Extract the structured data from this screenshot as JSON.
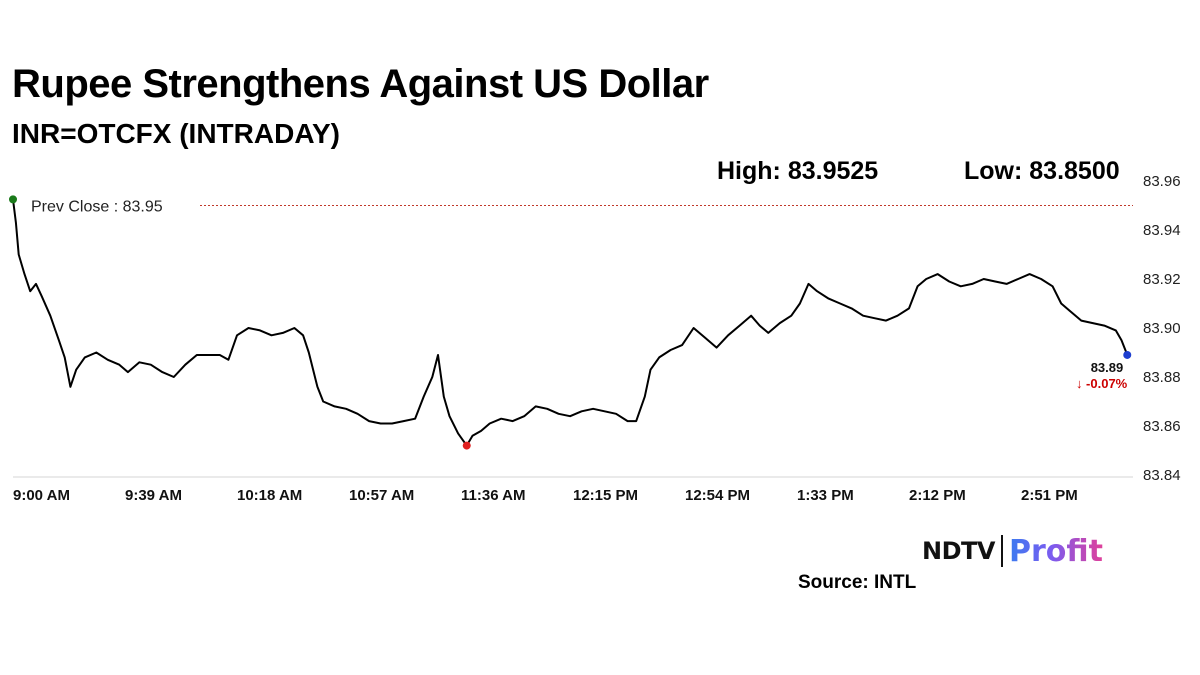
{
  "header": {
    "title": "Rupee Strengthens Against US Dollar",
    "subtitle": "INR=OTCFX (INTRADAY)",
    "high_text": "High: 83.9525",
    "low_text": "Low: 83.8500"
  },
  "chart_data": {
    "type": "line",
    "title": "Rupee Strengthens Against US Dollar",
    "subtitle": "INR=OTCFX (INTRADAY)",
    "xlabel": "",
    "ylabel": "",
    "x_ticks": [
      "9:00 AM",
      "9:39 AM",
      "10:18 AM",
      "10:57 AM",
      "11:36 AM",
      "12:15 PM",
      "12:54 PM",
      "1:33 PM",
      "2:12 PM",
      "2:51 PM"
    ],
    "y_ticks": [
      "83.96",
      "83.94",
      "83.92",
      "83.90",
      "83.88",
      "83.86",
      "83.84"
    ],
    "ylim": [
      83.84,
      83.96
    ],
    "x_start": "9:00 AM",
    "x_end": "3:30 PM",
    "grid": false,
    "reference_line": {
      "label": "Prev Close : 83.95",
      "value": 83.95,
      "color": "#c0392b"
    },
    "high": 83.9525,
    "low": 83.85,
    "last_value_label": "83.89",
    "change_label": "↓ -0.07%",
    "colors": {
      "line": "#000000",
      "start_marker": "#1a7a1a",
      "low_marker": "#e02020",
      "end_marker": "#1e3fd0",
      "change": "#cc0000"
    },
    "series": [
      {
        "points": [
          [
            "9:00 AM",
            83.9525
          ],
          [
            "9:01 AM",
            83.943
          ],
          [
            "9:02 AM",
            83.93
          ],
          [
            "9:04 AM",
            83.922
          ],
          [
            "9:06 AM",
            83.915
          ],
          [
            "9:08 AM",
            83.918
          ],
          [
            "9:10 AM",
            83.913
          ],
          [
            "9:13 AM",
            83.905
          ],
          [
            "9:16 AM",
            83.895
          ],
          [
            "9:18 AM",
            83.888
          ],
          [
            "9:20 AM",
            83.876
          ],
          [
            "9:22 AM",
            83.883
          ],
          [
            "9:25 AM",
            83.888
          ],
          [
            "9:29 AM",
            83.89
          ],
          [
            "9:33 AM",
            83.887
          ],
          [
            "9:37 AM",
            83.885
          ],
          [
            "9:40 AM",
            83.882
          ],
          [
            "9:44 AM",
            83.886
          ],
          [
            "9:48 AM",
            83.885
          ],
          [
            "9:52 AM",
            83.882
          ],
          [
            "9:56 AM",
            83.88
          ],
          [
            "10:00 AM",
            83.885
          ],
          [
            "10:04 AM",
            83.889
          ],
          [
            "10:08 AM",
            83.889
          ],
          [
            "10:12 AM",
            83.889
          ],
          [
            "10:15 AM",
            83.887
          ],
          [
            "10:18 AM",
            83.897
          ],
          [
            "10:22 AM",
            83.9
          ],
          [
            "10:26 AM",
            83.899
          ],
          [
            "10:30 AM",
            83.897
          ],
          [
            "10:34 AM",
            83.898
          ],
          [
            "10:38 AM",
            83.9
          ],
          [
            "10:41 AM",
            83.897
          ],
          [
            "10:43 AM",
            83.89
          ],
          [
            "10:46 AM",
            83.876
          ],
          [
            "10:48 AM",
            83.87
          ],
          [
            "10:52 AM",
            83.868
          ],
          [
            "10:56 AM",
            83.867
          ],
          [
            "11:00 AM",
            83.865
          ],
          [
            "11:04 AM",
            83.862
          ],
          [
            "11:08 AM",
            83.861
          ],
          [
            "11:12 AM",
            83.861
          ],
          [
            "11:16 AM",
            83.862
          ],
          [
            "11:20 AM",
            83.863
          ],
          [
            "11:23 AM",
            83.872
          ],
          [
            "11:26 AM",
            83.88
          ],
          [
            "11:28 AM",
            83.889
          ],
          [
            "11:30 AM",
            83.872
          ],
          [
            "11:32 AM",
            83.864
          ],
          [
            "11:35 AM",
            83.857
          ],
          [
            "11:38 AM",
            83.852
          ],
          [
            "11:40 AM",
            83.856
          ],
          [
            "11:43 AM",
            83.858
          ],
          [
            "11:46 AM",
            83.861
          ],
          [
            "11:50 AM",
            83.863
          ],
          [
            "11:54 AM",
            83.862
          ],
          [
            "11:58 AM",
            83.864
          ],
          [
            "12:02 PM",
            83.868
          ],
          [
            "12:06 PM",
            83.867
          ],
          [
            "12:10 PM",
            83.865
          ],
          [
            "12:14 PM",
            83.864
          ],
          [
            "12:18 PM",
            83.866
          ],
          [
            "12:22 PM",
            83.867
          ],
          [
            "12:26 PM",
            83.866
          ],
          [
            "12:30 PM",
            83.865
          ],
          [
            "12:34 PM",
            83.862
          ],
          [
            "12:37 PM",
            83.862
          ],
          [
            "12:40 PM",
            83.872
          ],
          [
            "12:42 PM",
            83.883
          ],
          [
            "12:45 PM",
            83.888
          ],
          [
            "12:49 PM",
            83.891
          ],
          [
            "12:53 PM",
            83.893
          ],
          [
            "12:57 PM",
            83.9
          ],
          [
            "1:01 PM",
            83.896
          ],
          [
            "1:05 PM",
            83.892
          ],
          [
            "1:09 PM",
            83.897
          ],
          [
            "1:13 PM",
            83.901
          ],
          [
            "1:17 PM",
            83.905
          ],
          [
            "1:20 PM",
            83.901
          ],
          [
            "1:23 PM",
            83.898
          ],
          [
            "1:27 PM",
            83.902
          ],
          [
            "1:31 PM",
            83.905
          ],
          [
            "1:34 PM",
            83.91
          ],
          [
            "1:37 PM",
            83.918
          ],
          [
            "1:40 PM",
            83.915
          ],
          [
            "1:44 PM",
            83.912
          ],
          [
            "1:48 PM",
            83.91
          ],
          [
            "1:52 PM",
            83.908
          ],
          [
            "1:56 PM",
            83.905
          ],
          [
            "2:00 PM",
            83.904
          ],
          [
            "2:04 PM",
            83.903
          ],
          [
            "2:08 PM",
            83.905
          ],
          [
            "2:12 PM",
            83.908
          ],
          [
            "2:15 PM",
            83.917
          ],
          [
            "2:18 PM",
            83.92
          ],
          [
            "2:22 PM",
            83.922
          ],
          [
            "2:26 PM",
            83.919
          ],
          [
            "2:30 PM",
            83.917
          ],
          [
            "2:34 PM",
            83.918
          ],
          [
            "2:38 PM",
            83.92
          ],
          [
            "2:42 PM",
            83.919
          ],
          [
            "2:46 PM",
            83.918
          ],
          [
            "2:50 PM",
            83.92
          ],
          [
            "2:54 PM",
            83.922
          ],
          [
            "2:58 PM",
            83.92
          ],
          [
            "3:02 PM",
            83.917
          ],
          [
            "3:05 PM",
            83.91
          ],
          [
            "3:08 PM",
            83.907
          ],
          [
            "3:12 PM",
            83.903
          ],
          [
            "3:16 PM",
            83.902
          ],
          [
            "3:20 PM",
            83.901
          ],
          [
            "3:24 PM",
            83.899
          ],
          [
            "3:26 PM",
            83.895
          ],
          [
            "3:28 PM",
            83.889
          ]
        ]
      }
    ]
  },
  "footer": {
    "brand_main": "NDTV",
    "brand_sub": "Profit",
    "source": "Source: INTL"
  }
}
